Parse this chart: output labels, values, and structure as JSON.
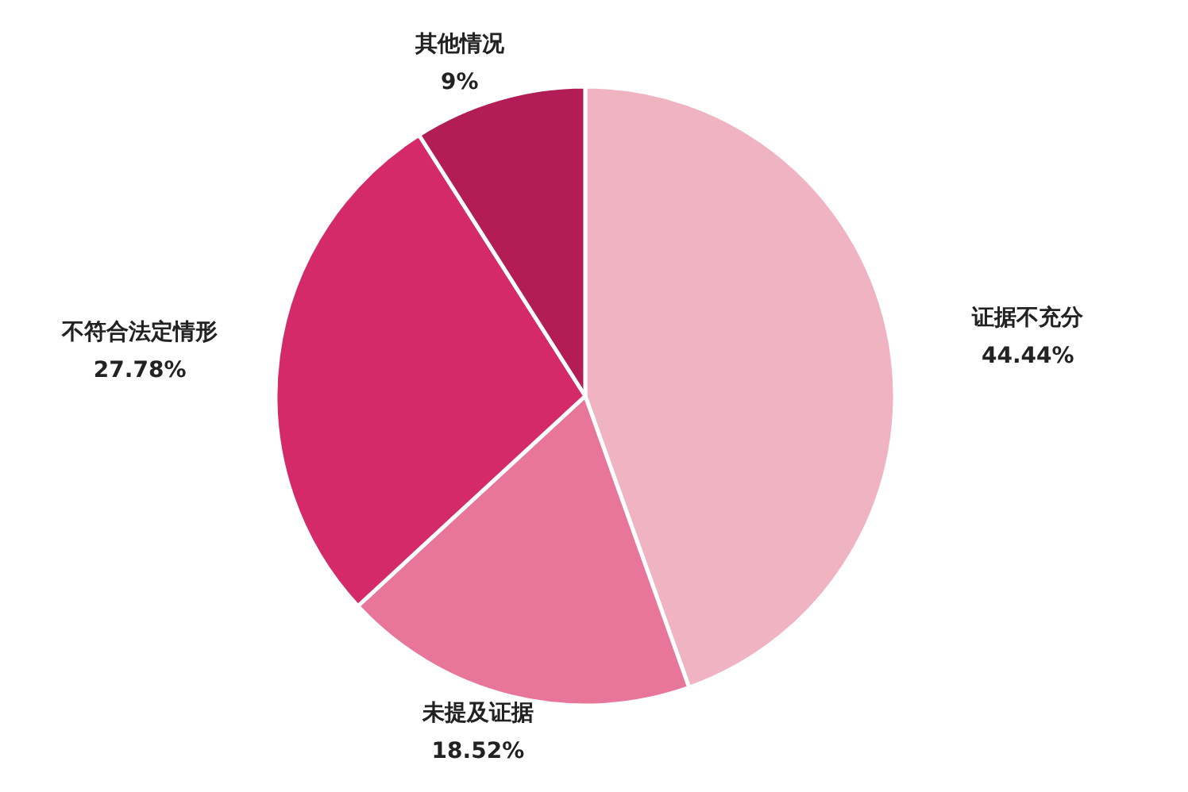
{
  "chart_data": {
    "type": "pie",
    "categories": [
      "证据不充分",
      "未提及证据",
      "不符合法定情形",
      "其他情况"
    ],
    "values": [
      44.44,
      18.52,
      27.78,
      9
    ],
    "value_labels": [
      "44.44%",
      "18.52%",
      "27.78%",
      "9%"
    ],
    "colors": [
      "#f0b3c2",
      "#e8759a",
      "#d42a6a",
      "#b21d55"
    ]
  }
}
